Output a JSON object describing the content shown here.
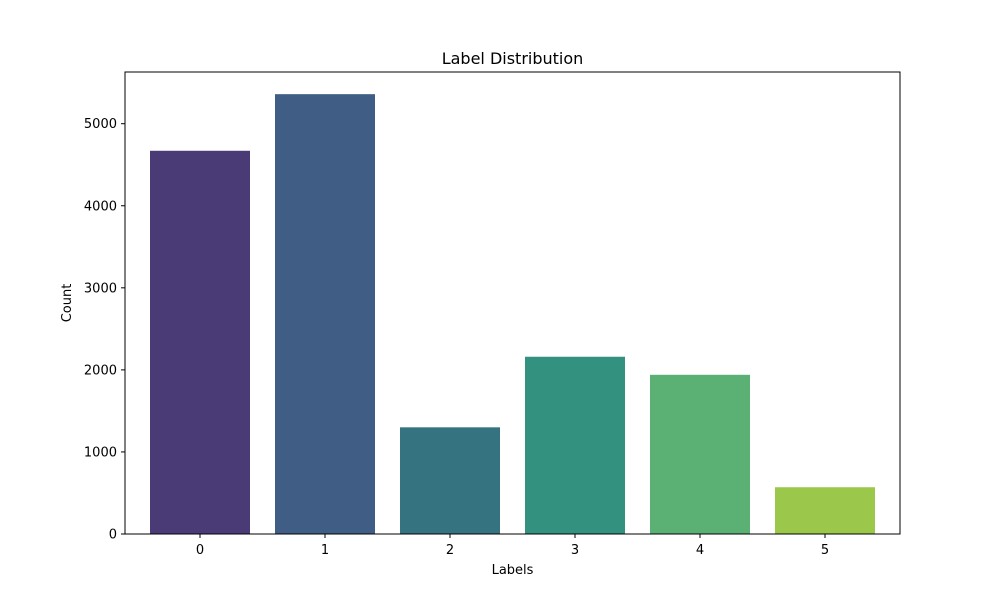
{
  "chart_data": {
    "type": "bar",
    "title": "Label Distribution",
    "xlabel": "Labels",
    "ylabel": "Count",
    "categories": [
      "0",
      "1",
      "2",
      "3",
      "4",
      "5"
    ],
    "values": [
      4670,
      5360,
      1300,
      2160,
      1940,
      570
    ],
    "ylim": [
      0,
      5630
    ],
    "yticks": [
      0,
      1000,
      2000,
      3000,
      4000,
      5000
    ],
    "ytick_labels": [
      "0",
      "1000",
      "2000",
      "3000",
      "4000",
      "5000"
    ],
    "colors": [
      "#482878",
      "#3e4a89",
      "#31688e",
      "#26828e",
      "#1f9e89",
      "#35b779"
    ],
    "bar_colors": [
      "#4a3b77",
      "#405e85",
      "#357381",
      "#32917f",
      "#5ab173",
      "#9bc74a"
    ],
    "grid": false,
    "legend": "none"
  }
}
